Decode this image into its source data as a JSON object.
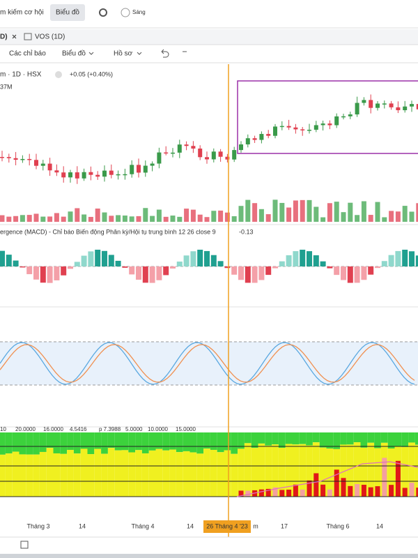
{
  "top_bar": {
    "search": "m kiếm cơ hội",
    "chart_button": "Biểu đồ",
    "theme_toggle": "Sáng"
  },
  "tabs": [
    "D)",
    "VOS (1D)"
  ],
  "toolbar": {
    "indicators": "Các chỉ báo",
    "chart_type": "Biểu đồ",
    "profile": "Hồ sơ"
  },
  "legend": {
    "symbol": "m · 1D · HSX",
    "change": "+0.05 (+0.40%)",
    "volume": "37M"
  },
  "macd": {
    "label": "ergence (MACD) - Chỉ báo Biến động Phân kỳ/Hội tụ trung bình 12 26 close 9",
    "value": "-0.13"
  },
  "bottom_indicator": {
    "labels": [
      "10",
      "20.0000",
      "16.0000",
      "4.5416",
      "p 7.3988",
      "5.0000",
      "10.0000",
      "15.0000"
    ]
  },
  "x_axis": {
    "labels": [
      "Tháng 3",
      "14",
      "Tháng 4",
      "14",
      "m",
      "17",
      "Tháng 6",
      "14"
    ],
    "crosshair_label": "26 Tháng 4 '23"
  }
}
